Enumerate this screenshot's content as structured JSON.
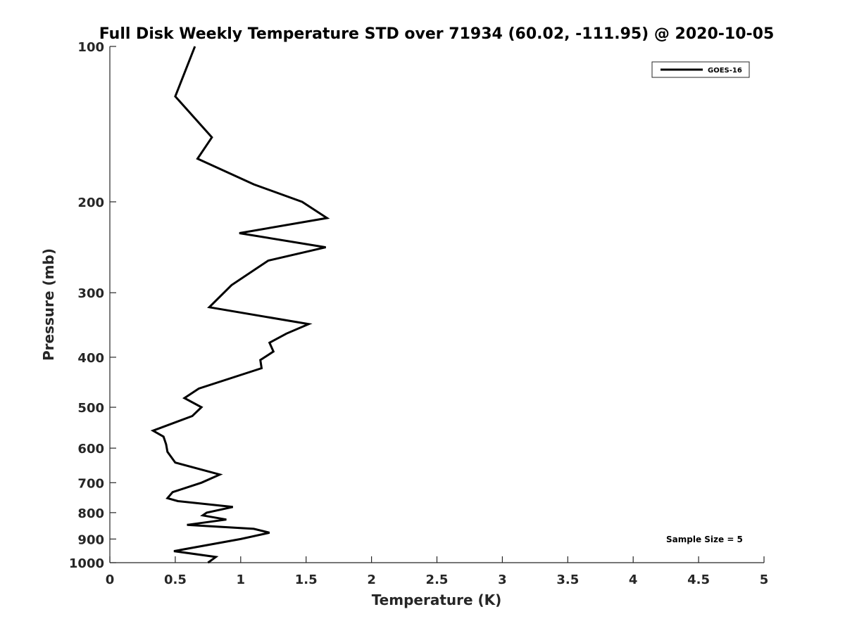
{
  "chart_data": {
    "type": "line",
    "title": "Full Disk Weekly Temperature STD over 71934 (60.02, -111.95) @ 2020-10-05",
    "xlabel": "Temperature (K)",
    "ylabel": "Pressure (mb)",
    "xlim": [
      0,
      5
    ],
    "ylim": [
      100,
      1000
    ],
    "y_scale": "log",
    "y_reversed": true,
    "x_ticks": [
      "0",
      "0.5",
      "1",
      "1.5",
      "2",
      "2.5",
      "3",
      "3.5",
      "4",
      "4.5",
      "5"
    ],
    "y_ticks": [
      "100",
      "200",
      "300",
      "400",
      "500",
      "600",
      "700",
      "800",
      "900",
      "1000"
    ],
    "grid": false,
    "legend_position": "top-right",
    "series": [
      {
        "name": "GOES-16",
        "color": "#000000",
        "x": [
          0.65,
          0.5,
          0.78,
          0.67,
          1.1,
          1.47,
          1.66,
          0.99,
          1.65,
          1.21,
          0.93,
          0.76,
          1.52,
          1.35,
          1.22,
          1.25,
          1.15,
          1.16,
          0.68,
          0.57,
          0.7,
          0.63,
          0.33,
          0.41,
          0.43,
          0.44,
          0.5,
          0.84,
          0.7,
          0.48,
          0.44,
          0.52,
          0.94,
          0.74,
          0.71,
          0.89,
          0.59,
          1.1,
          1.22,
          1.0,
          0.49,
          0.81,
          0.75
        ],
        "y": [
          100,
          125,
          150,
          165,
          185,
          200,
          215,
          230,
          245,
          260,
          290,
          320,
          345,
          360,
          375,
          390,
          405,
          420,
          460,
          480,
          500,
          520,
          555,
          570,
          590,
          610,
          640,
          675,
          700,
          730,
          750,
          760,
          780,
          800,
          810,
          825,
          845,
          860,
          875,
          900,
          950,
          975,
          1000
        ]
      }
    ],
    "annotations": [
      "Sample Size = 5"
    ]
  }
}
